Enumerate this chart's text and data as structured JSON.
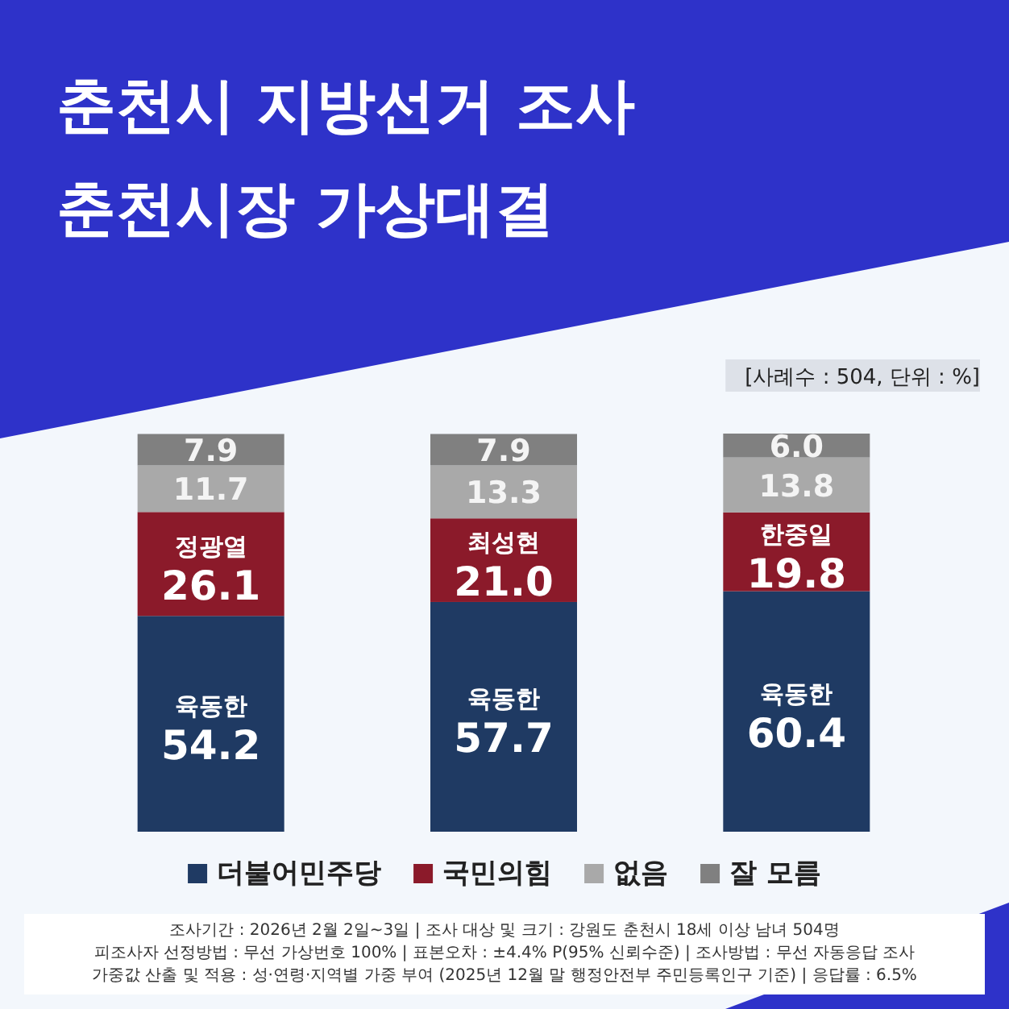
{
  "chart_data": {
    "type": "bar",
    "stacked": true,
    "title": "춘천시 지방선거 조사",
    "subtitle": "춘천시장 가상대결",
    "categories": [
      null,
      null,
      null
    ],
    "series": [
      {
        "name": "더불어민주당",
        "color": "#1f3a63",
        "values": [
          54.2,
          57.7,
          60.4
        ],
        "value_labels": [
          "육동한\n54.2",
          "육동한\n57.7",
          "육동한\n60.4"
        ]
      },
      {
        "name": "국민의힘",
        "color": "#8b1a2a",
        "values": [
          26.1,
          21.0,
          19.8
        ],
        "value_labels": [
          "정광열\n26.1",
          "최성현\n21.0",
          "한중일\n19.8"
        ]
      },
      {
        "name": "없음",
        "color": "#a9a9a9",
        "values": [
          11.7,
          13.3,
          13.8
        ],
        "value_labels": [
          "11.7",
          "13.3",
          "13.8"
        ]
      },
      {
        "name": "잘 모름",
        "color": "#808080",
        "values": [
          7.9,
          7.9,
          6.0
        ],
        "value_labels": [
          "7.9",
          "7.9",
          "6.0"
        ]
      }
    ],
    "legend": "bottom",
    "annotations": [
      "[사례수 : 504, 단위 : %]",
      "조사기간 : 2026년 2월 2일~3일 | 조사 대상 및 크기 : 강원도 춘천시 18세 이상 남녀 504명",
      "피조사자 선정방법 : 무선 가상번호 100% | 표본오차 : ±4.4% P(95% 신뢰수준) |  조사방법 : 무선 자동응답 조사",
      "가중값 산출 및 적용 : 성·연령·지역별 가중 부여 (2025년 12월 말 행정안전부 주민등록인구 기준) | 응답률 : 6.5%"
    ]
  }
}
